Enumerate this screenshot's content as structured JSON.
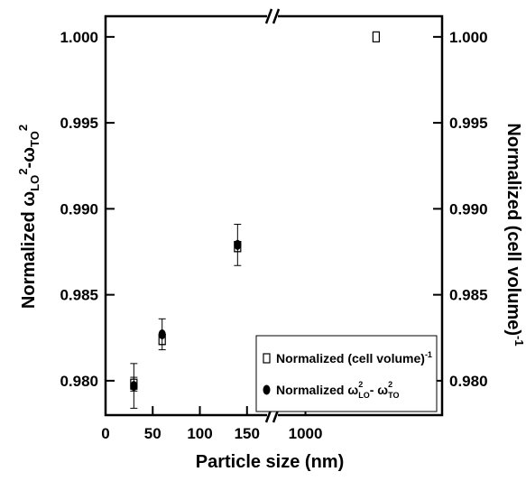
{
  "chart_data": {
    "type": "scatter",
    "xlabel": "Particle size (nm)",
    "ylabel_left": {
      "base": "Normalized ω",
      "s1": "LO",
      "sup1": "2",
      "mid": "-ω",
      "s2": "TO",
      "sup2": "2"
    },
    "ylabel_right": {
      "base": "Normalized (cell volume)",
      "sup": "-1"
    },
    "ylim": [
      0.978,
      1.0012
    ],
    "y_ticks": [
      0.98,
      0.985,
      0.99,
      0.995,
      1.0
    ],
    "y_tick_labels": [
      "0.980",
      "0.985",
      "0.990",
      "0.995",
      "1.000"
    ],
    "x_axis_break": true,
    "x_segment_1": {
      "range": [
        0,
        177
      ],
      "ticks": [
        0,
        50,
        100,
        150
      ],
      "tick_labels": [
        "0",
        "50",
        "100",
        "150"
      ]
    },
    "x_segment_2": {
      "range": [
        860,
        1580
      ],
      "ticks": [
        1000
      ],
      "tick_labels": [
        "1000"
      ]
    },
    "legend": {
      "position": "center-right",
      "entries": [
        {
          "marker": "open-square",
          "text": "Normalized (cell volume)",
          "sup": "-1"
        },
        {
          "marker": "filled-circle",
          "base": "Normalized ω",
          "sup1": "2",
          "sub1": "LO",
          "mid": "- ω",
          "sup2": "2",
          "sub2": "TO"
        }
      ]
    },
    "series": [
      {
        "name": "Normalized (cell volume)-1",
        "marker": "open-square",
        "points": [
          {
            "x": 30,
            "y": 0.9798,
            "err": 0.0004
          },
          {
            "x": 60,
            "y": 0.9824,
            "err": 0.0003
          },
          {
            "x": 140,
            "y": 0.9878,
            "err": 0.0003
          },
          {
            "x": 1300,
            "y": 1.0,
            "err": 0.0002
          }
        ]
      },
      {
        "name": "Normalized ωLO2-ωTO2",
        "marker": "filled-circle",
        "points": [
          {
            "x": 30,
            "y": 0.9797,
            "err": 0.0013
          },
          {
            "x": 60,
            "y": 0.9827,
            "err": 0.0009
          },
          {
            "x": 140,
            "y": 0.9879,
            "err": 0.0012
          }
        ]
      }
    ]
  }
}
